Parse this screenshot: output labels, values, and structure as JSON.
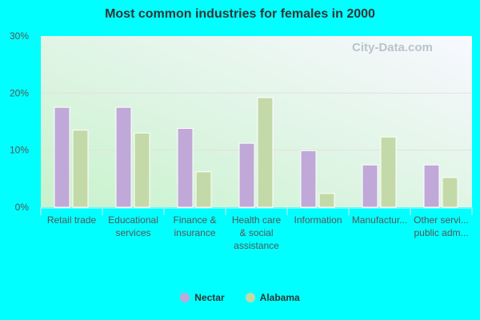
{
  "chart_data": {
    "type": "bar",
    "title": "Most common industries for females in 2000",
    "categories": [
      [
        "Retail trade"
      ],
      [
        "Educational",
        "services"
      ],
      [
        "Finance &",
        "insurance"
      ],
      [
        "Health care",
        "& social",
        "assistance"
      ],
      [
        "Information"
      ],
      [
        "Manufactur..."
      ],
      [
        "Other servi...",
        "public adm..."
      ]
    ],
    "series": [
      {
        "name": "Nectar",
        "color": "#c0a8d8",
        "values": [
          17.5,
          17.5,
          13.8,
          11.2,
          9.9,
          7.4,
          7.4
        ]
      },
      {
        "name": "Alabama",
        "color": "#c4d9a8",
        "values": [
          13.5,
          13.0,
          6.2,
          19.2,
          2.4,
          12.3,
          5.2
        ]
      }
    ],
    "ylim": [
      0,
      30
    ],
    "yticks": [
      "0%",
      "10%",
      "20%",
      "30%"
    ],
    "grid": true,
    "legend": "bottom",
    "watermark": "City-Data.com"
  }
}
